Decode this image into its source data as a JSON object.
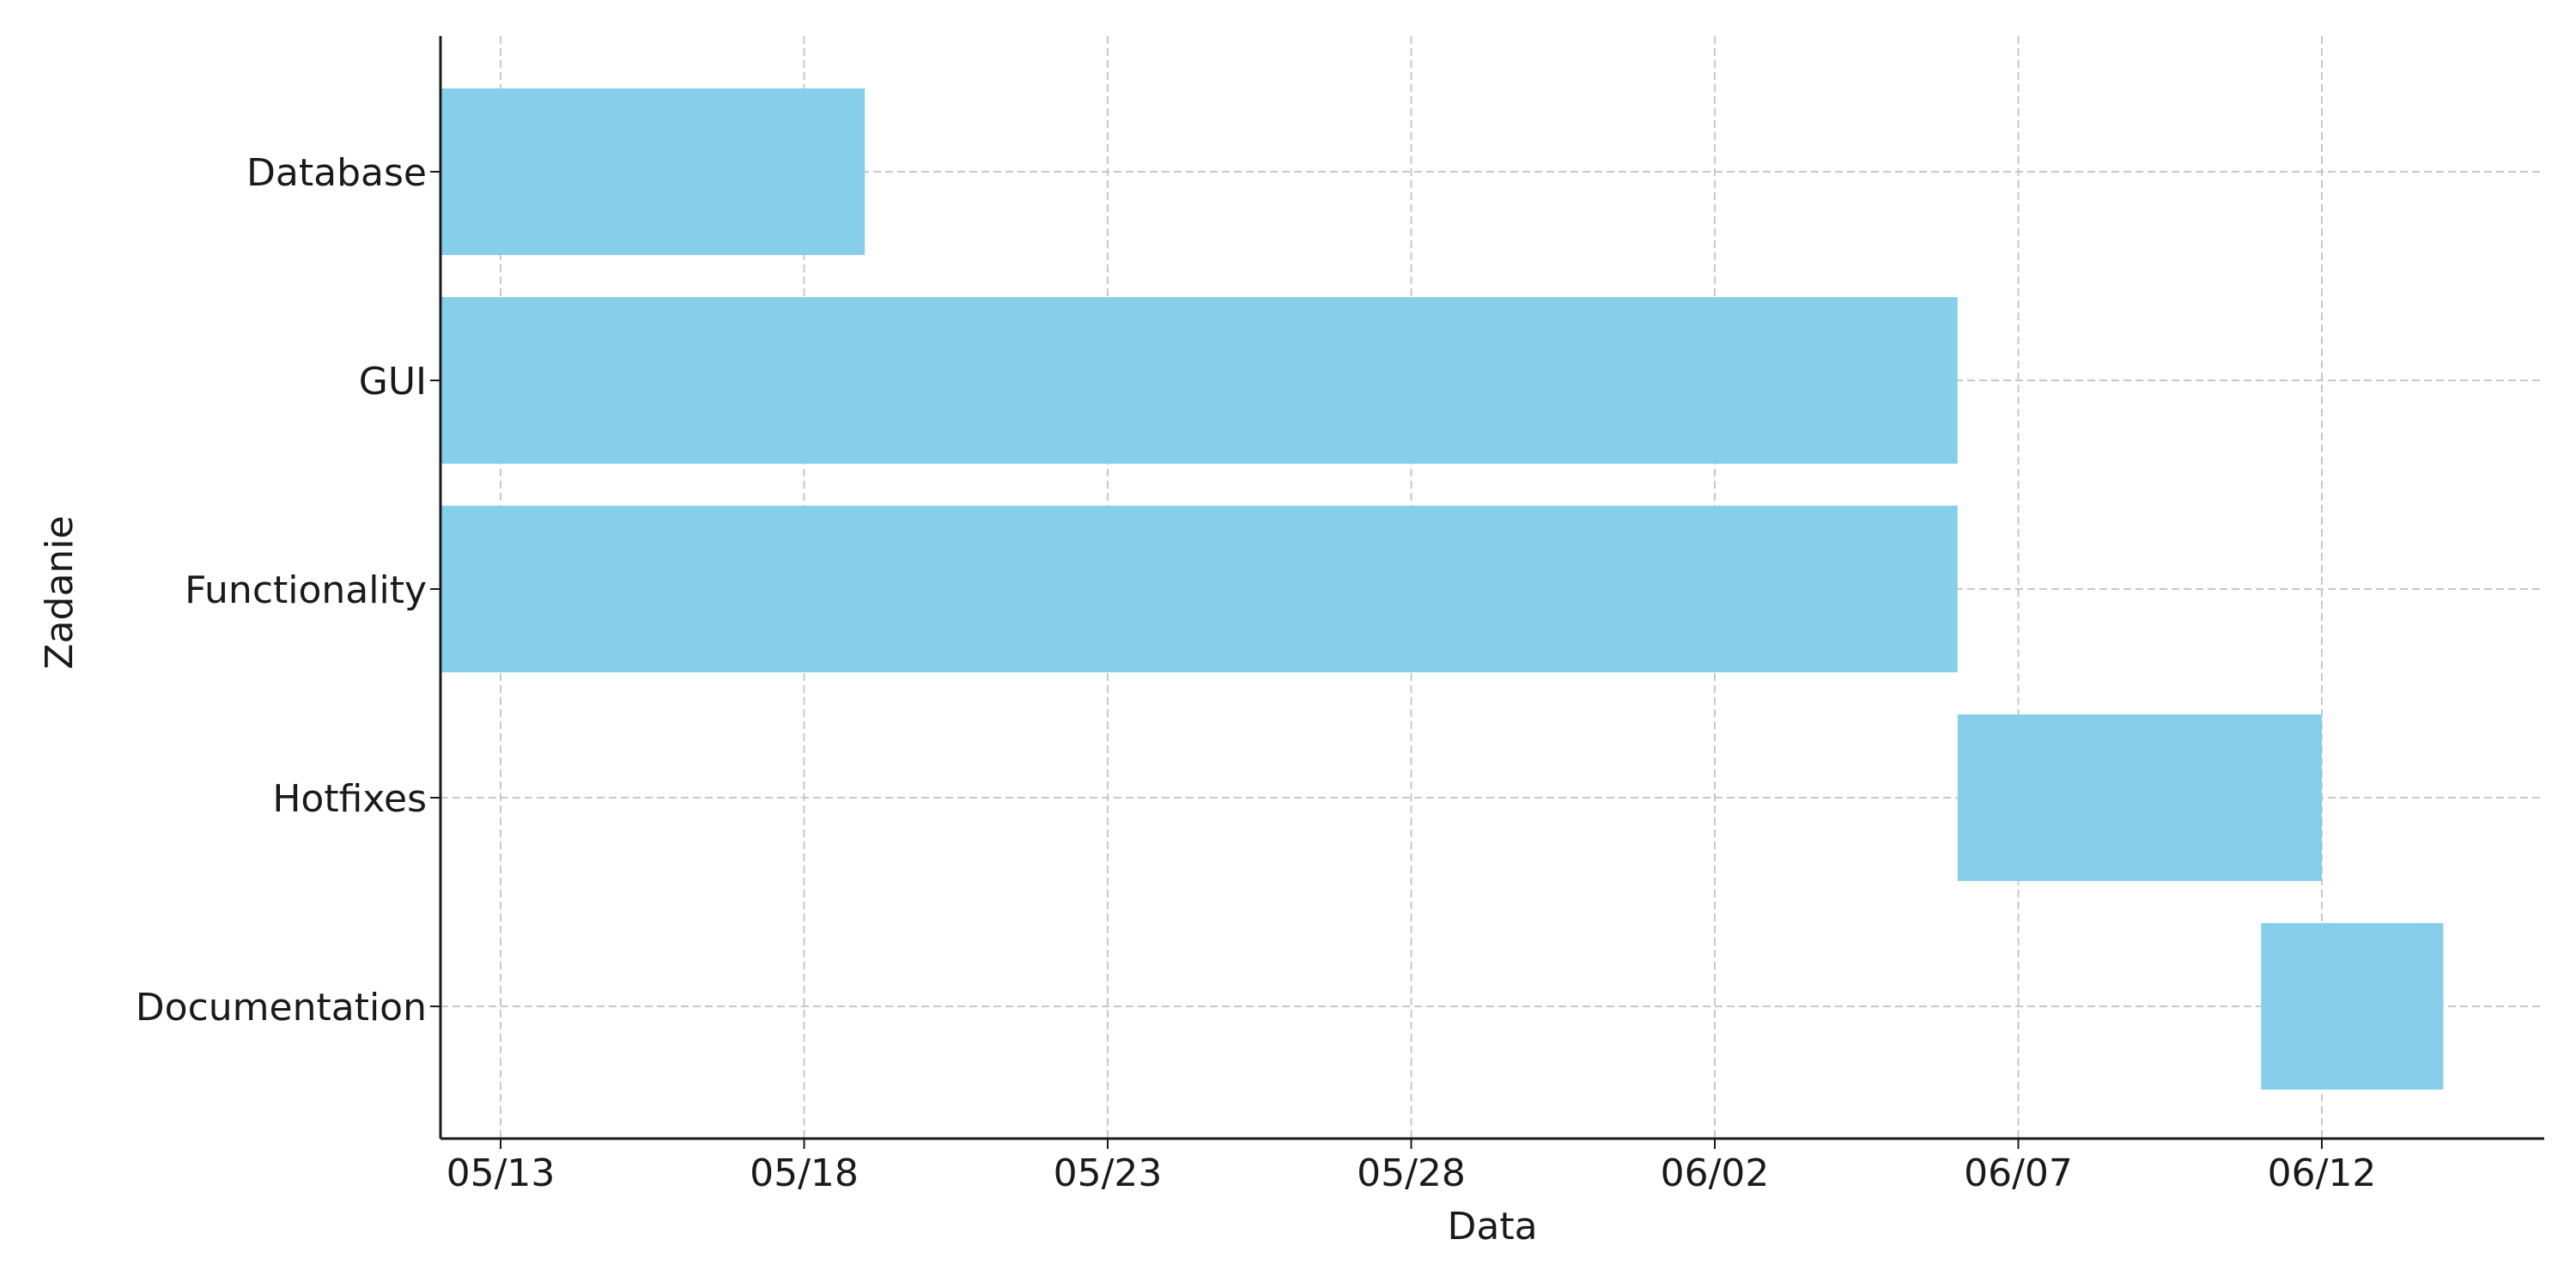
{
  "chart_data": {
    "type": "bar",
    "orientation": "horizontal",
    "gantt": true,
    "xlabel": "Data",
    "ylabel": "Zadanie",
    "bar_color": "#87CEEB",
    "grid": true,
    "x_ticks": [
      "05/13",
      "05/18",
      "05/23",
      "05/28",
      "06/02",
      "06/07",
      "06/12"
    ],
    "tasks": [
      {
        "name": "Database",
        "start": "05/12",
        "end": "05/19"
      },
      {
        "name": "GUI",
        "start": "05/12",
        "end": "06/06"
      },
      {
        "name": "Functionality",
        "start": "05/12",
        "end": "06/06"
      },
      {
        "name": "Hotfixes",
        "start": "06/06",
        "end": "06/12"
      },
      {
        "name": "Documentation",
        "start": "06/11",
        "end": "06/14"
      }
    ]
  }
}
